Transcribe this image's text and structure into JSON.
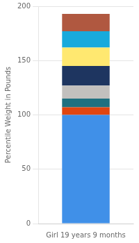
{
  "chart_data": {
    "type": "bar",
    "stacked": true,
    "categories": [
      "Girl 19 years 9 months"
    ],
    "series": [
      {
        "color": "#4090E8",
        "values": [
          100
        ]
      },
      {
        "color": "#E04510",
        "values": [
          7
        ]
      },
      {
        "color": "#1E7080",
        "values": [
          8
        ]
      },
      {
        "color": "#C2C0BE",
        "values": [
          12
        ]
      },
      {
        "color": "#1E3560",
        "values": [
          18
        ]
      },
      {
        "color": "#FFE870",
        "values": [
          17
        ]
      },
      {
        "color": "#18AADC",
        "values": [
          15
        ]
      },
      {
        "color": "#B05840",
        "values": [
          16
        ]
      }
    ],
    "y_label": "Percentile Weight in Pounds",
    "ylim": [
      0,
      200
    ],
    "yticks": [
      0,
      50,
      100,
      150,
      200
    ],
    "grid": true
  }
}
